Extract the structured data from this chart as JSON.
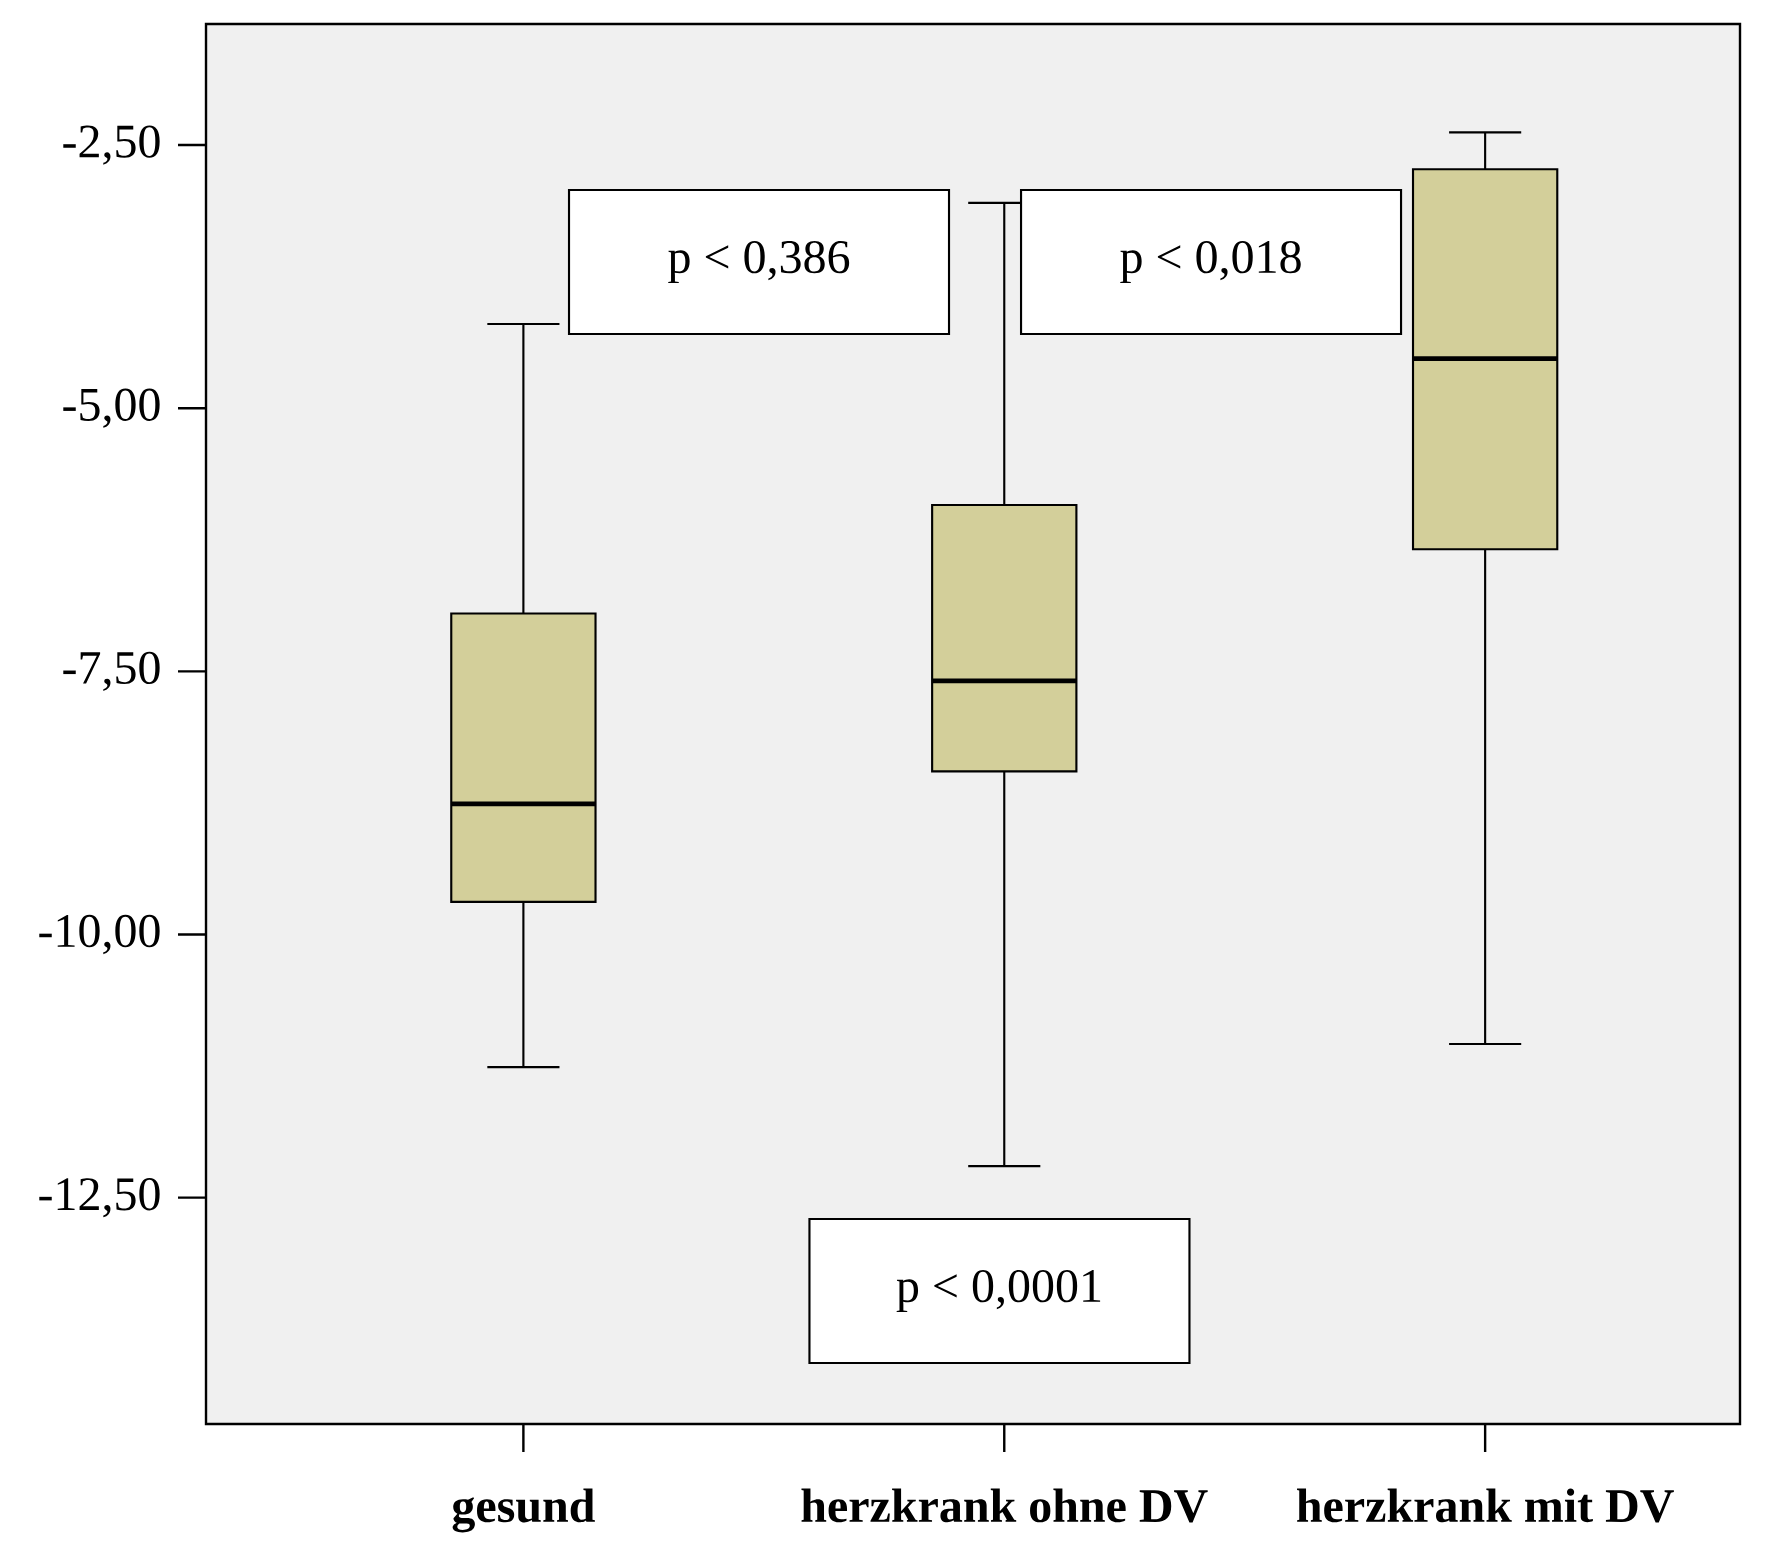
{
  "chart_data": {
    "type": "box",
    "categories": [
      "gesund",
      "herzkrank ohne DV",
      "herzkrank mit DV"
    ],
    "boxes": [
      {
        "low": -11.26,
        "q1": -9.69,
        "median": -8.76,
        "q3": -6.95,
        "high": -4.2
      },
      {
        "low": -12.2,
        "q1": -8.45,
        "median": -7.59,
        "q3": -5.92,
        "high": -3.05
      },
      {
        "low": -11.04,
        "q1": -6.34,
        "median": -4.53,
        "q3": -2.73,
        "high": -2.38
      }
    ],
    "color": "#d3cf9a",
    "ylim": [
      -14.65,
      -1.35
    ],
    "yticks": [
      {
        "value": -2.5,
        "label": "-2,50"
      },
      {
        "value": -5,
        "label": "-5,00"
      },
      {
        "value": -7.5,
        "label": "-7,50"
      },
      {
        "value": -10,
        "label": "-10,00"
      },
      {
        "value": -12.5,
        "label": "-12,50"
      }
    ],
    "grid": false,
    "annotations": [
      "p < 0,386",
      "p < 0,018",
      "p < 0,0001"
    ]
  }
}
